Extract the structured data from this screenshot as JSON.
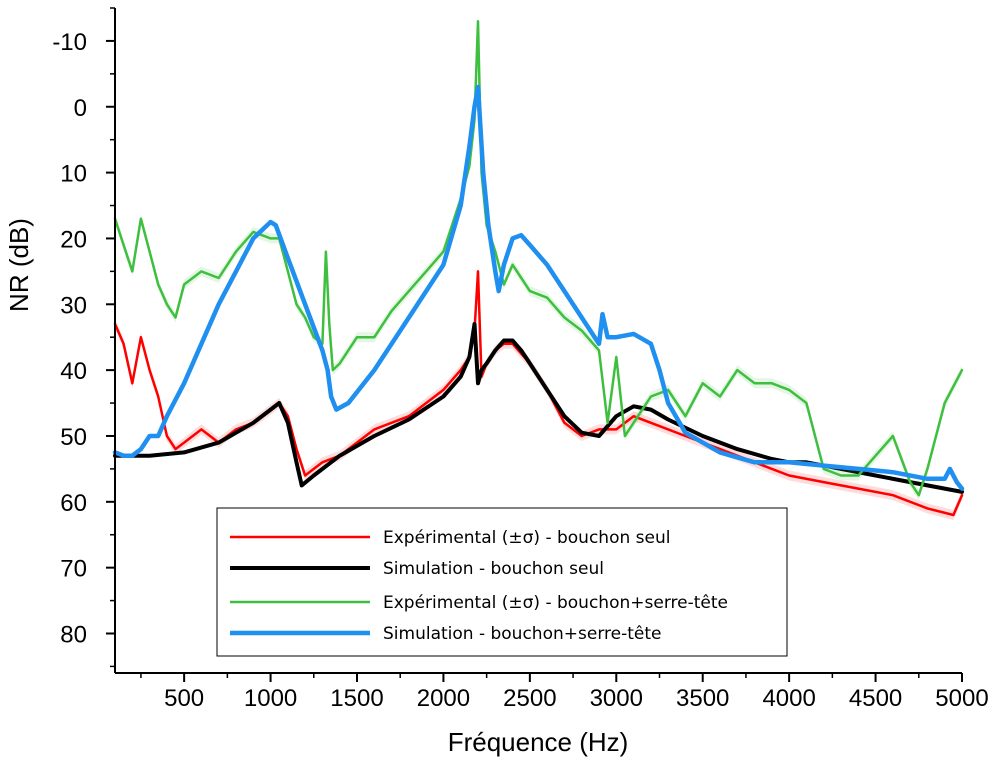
{
  "chart_data": {
    "type": "line",
    "title": "",
    "xlabel": "Fréquence (Hz)",
    "ylabel": "NR (dB)",
    "xlim": [
      100,
      5000
    ],
    "ylim": [
      86,
      -15
    ],
    "y_inverted": true,
    "xticks": [
      500,
      1000,
      1500,
      2000,
      2500,
      3000,
      3500,
      4000,
      4500,
      5000
    ],
    "xtick_labels": [
      "500",
      "1000",
      "1500",
      "2000",
      "2500",
      "3000",
      "3500",
      "4000",
      "4500",
      "5000"
    ],
    "yticks": [
      -10,
      0,
      10,
      20,
      30,
      40,
      50,
      60,
      70,
      80
    ],
    "ytick_labels": [
      "-10",
      "0",
      "10",
      "20",
      "30",
      "40",
      "50",
      "60",
      "70",
      "80"
    ],
    "grid": false,
    "legend_position": "bottom-center",
    "series": [
      {
        "name": "Expérimental (±σ)  - bouchon seul",
        "color": "#ff0000",
        "stroke": 2.5,
        "band": true,
        "x": [
          100,
          150,
          200,
          250,
          300,
          350,
          400,
          450,
          500,
          600,
          700,
          800,
          900,
          1000,
          1050,
          1100,
          1150,
          1200,
          1300,
          1400,
          1600,
          1800,
          2000,
          2100,
          2150,
          2180,
          2200,
          2220,
          2250,
          2300,
          2350,
          2400,
          2500,
          2600,
          2700,
          2800,
          2900,
          3000,
          3100,
          3200,
          3400,
          3600,
          3800,
          4000,
          4200,
          4400,
          4600,
          4800,
          4950,
          5000
        ],
        "y": [
          33,
          36,
          42,
          35,
          40,
          44,
          50,
          52,
          51,
          49,
          51,
          49,
          48,
          46,
          45,
          47,
          52,
          56,
          54,
          53,
          49,
          47,
          43,
          40,
          38,
          34,
          25,
          41,
          39,
          37,
          36,
          36,
          39,
          43,
          48,
          50,
          49,
          49,
          47,
          48,
          50,
          52,
          54,
          56,
          57,
          58,
          59,
          61,
          62,
          59
        ]
      },
      {
        "name": "Simulation - bouchon seul",
        "color": "#000000",
        "stroke": 4,
        "band": false,
        "x": [
          100,
          300,
          500,
          700,
          900,
          1000,
          1050,
          1100,
          1150,
          1180,
          1250,
          1400,
          1600,
          1800,
          2000,
          2100,
          2150,
          2180,
          2200,
          2220,
          2250,
          2300,
          2350,
          2400,
          2450,
          2500,
          2600,
          2700,
          2800,
          2900,
          3000,
          3100,
          3200,
          3300,
          3500,
          3700,
          3900,
          4000,
          4100,
          4300,
          4500,
          4700,
          4900,
          5000
        ],
        "y": [
          53,
          53,
          52.5,
          51,
          48,
          46,
          45,
          48,
          54,
          57.5,
          56,
          53,
          50,
          47.5,
          44,
          41,
          38,
          33,
          42,
          40,
          39,
          37,
          35.5,
          35.5,
          37,
          39,
          43,
          47,
          49.5,
          50,
          47,
          45.5,
          46,
          47.5,
          50,
          52,
          53.5,
          54,
          54,
          55,
          56,
          57,
          58,
          58.5
        ]
      },
      {
        "name": "Expérimental (±σ)  - bouchon+serre-tête",
        "color": "#3fbf3f",
        "stroke": 2.5,
        "band": true,
        "x": [
          100,
          150,
          200,
          250,
          300,
          350,
          400,
          450,
          500,
          600,
          700,
          800,
          900,
          1000,
          1050,
          1100,
          1150,
          1200,
          1250,
          1300,
          1320,
          1340,
          1360,
          1400,
          1500,
          1600,
          1700,
          1800,
          1900,
          2000,
          2100,
          2150,
          2180,
          2200,
          2220,
          2250,
          2300,
          2350,
          2400,
          2500,
          2600,
          2700,
          2800,
          2900,
          2950,
          3000,
          3050,
          3100,
          3200,
          3300,
          3400,
          3500,
          3600,
          3700,
          3800,
          3900,
          4000,
          4100,
          4200,
          4300,
          4400,
          4500,
          4600,
          4700,
          4750,
          4800,
          4900,
          5000
        ],
        "y": [
          17,
          21,
          25,
          17,
          22,
          27,
          30,
          32,
          27,
          25,
          26,
          22,
          19,
          20,
          20,
          25,
          30,
          32,
          35,
          36,
          22,
          33,
          40,
          39,
          35,
          35,
          31,
          28,
          25,
          22,
          14,
          9,
          2,
          -13,
          10,
          18,
          22,
          27,
          24,
          28,
          29,
          32,
          34,
          37,
          48,
          38,
          50,
          48,
          44,
          43,
          47,
          42,
          44,
          40,
          42,
          42,
          43,
          45,
          55,
          56,
          56,
          53,
          50,
          57,
          59,
          55,
          45,
          40
        ]
      },
      {
        "name": "Simulation - bouchon+serre-tête",
        "color": "#1f8ff0",
        "stroke": 4.5,
        "band": false,
        "x": [
          100,
          150,
          200,
          250,
          300,
          350,
          400,
          500,
          600,
          700,
          800,
          900,
          1000,
          1030,
          1100,
          1200,
          1300,
          1330,
          1350,
          1380,
          1450,
          1600,
          1800,
          2000,
          2100,
          2150,
          2180,
          2200,
          2230,
          2260,
          2300,
          2320,
          2350,
          2400,
          2450,
          2500,
          2600,
          2700,
          2800,
          2900,
          2920,
          2950,
          3000,
          3100,
          3200,
          3250,
          3300,
          3400,
          3600,
          3800,
          4000,
          4200,
          4400,
          4600,
          4800,
          4900,
          4930,
          4970,
          5000
        ],
        "y": [
          52.5,
          53,
          53,
          52,
          50,
          50,
          47,
          42,
          36,
          30,
          25,
          20,
          17.5,
          18,
          23,
          30,
          37,
          40,
          44,
          46,
          45,
          40,
          32,
          24,
          15,
          6,
          0,
          -3,
          10,
          18,
          25,
          28,
          24,
          20,
          19.5,
          21,
          24,
          28,
          32,
          36,
          31.5,
          35,
          35,
          34.5,
          36,
          40,
          45,
          49.5,
          52.5,
          54,
          54,
          54.5,
          55,
          55.5,
          56.5,
          56.5,
          55,
          57,
          58
        ]
      }
    ]
  }
}
